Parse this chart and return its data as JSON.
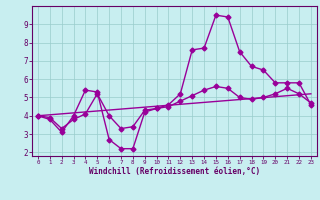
{
  "title": "",
  "xlabel": "Windchill (Refroidissement éolien,°C)",
  "ylabel": "",
  "bg_color": "#c8eef0",
  "line_color": "#990099",
  "grid_color": "#99cccc",
  "axis_color": "#660066",
  "text_color": "#660066",
  "xlim": [
    -0.5,
    23.5
  ],
  "ylim": [
    1.8,
    10.0
  ],
  "yticks": [
    2,
    3,
    4,
    5,
    6,
    7,
    8,
    9
  ],
  "xticks": [
    0,
    1,
    2,
    3,
    4,
    5,
    6,
    7,
    8,
    9,
    10,
    11,
    12,
    13,
    14,
    15,
    16,
    17,
    18,
    19,
    20,
    21,
    22,
    23
  ],
  "line1_x": [
    0,
    1,
    2,
    3,
    4,
    5,
    6,
    7,
    8,
    9,
    10,
    11,
    12,
    13,
    14,
    15,
    16,
    17,
    18,
    19,
    20,
    21,
    22,
    23
  ],
  "line1_y": [
    4.0,
    3.8,
    3.1,
    4.0,
    5.4,
    5.3,
    2.7,
    2.2,
    2.2,
    4.2,
    4.4,
    4.6,
    5.2,
    7.6,
    7.7,
    9.5,
    9.4,
    7.5,
    6.7,
    6.5,
    5.8,
    5.8,
    5.8,
    4.6
  ],
  "line2_x": [
    0,
    1,
    2,
    3,
    4,
    5,
    6,
    7,
    8,
    9,
    10,
    11,
    12,
    13,
    14,
    15,
    16,
    17,
    18,
    19,
    20,
    21,
    22,
    23
  ],
  "line2_y": [
    4.0,
    3.9,
    3.3,
    3.8,
    4.1,
    5.2,
    4.0,
    3.3,
    3.4,
    4.3,
    4.4,
    4.5,
    4.8,
    5.1,
    5.4,
    5.6,
    5.5,
    5.0,
    4.9,
    5.0,
    5.2,
    5.5,
    5.2,
    4.7
  ],
  "line3_x": [
    0,
    23
  ],
  "line3_y": [
    4.0,
    5.2
  ],
  "marker_size": 2.5,
  "linewidth": 1.0
}
